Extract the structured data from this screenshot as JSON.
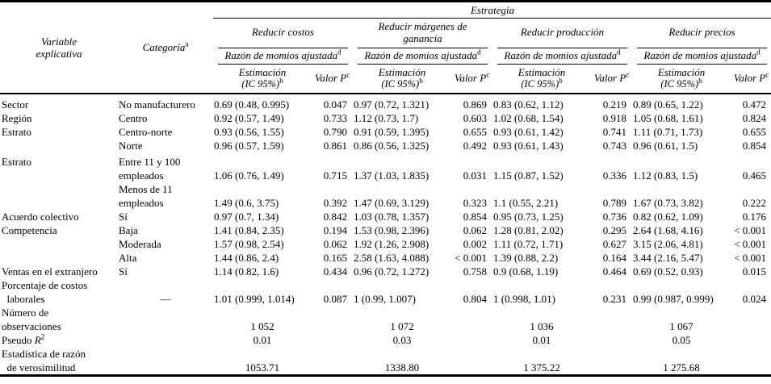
{
  "header": {
    "estrategia": "Estrategia",
    "variable": "Variable\nexplicativa",
    "categoria": {
      "text": "Categoría",
      "sup": "a"
    },
    "groups": [
      {
        "label": "Reducir costos"
      },
      {
        "label": "Reducir márgenes de\nganancia"
      },
      {
        "label": "Reducir producción"
      },
      {
        "label": "Reducir precios"
      }
    ],
    "momios": {
      "text": "Razón de momios ajustada",
      "sup": "d"
    },
    "estimacion": {
      "line1": "Estimación",
      "line2": "(IC 95%)",
      "sup": "b"
    },
    "valor_p": {
      "text": "Valor P",
      "sup": "c"
    }
  },
  "body": {
    "rows": [
      {
        "variable": "Sector",
        "categoria": "No manufacturero",
        "values": [
          "0.69 (0.48, 0.995)",
          "0.047",
          "0.97 (0.72, 1.321)",
          "0.869",
          "0.83 (0.62, 1.12)",
          "0.219",
          "0.89 (0.65, 1.22)",
          "0.472"
        ]
      },
      {
        "variable": "Región",
        "categoria": "Centro",
        "values": [
          "0.92 (0.57, 1.49)",
          "0.733",
          "1.12 (0.73, 1.7)",
          "0.603",
          "1.02 (0.68, 1.54)",
          "0.918",
          "1.05 (0.68, 1.61)",
          "0.824"
        ]
      },
      {
        "variable": "Estrato",
        "categoria": "Centro-norte",
        "values": [
          "0.93 (0.56, 1.55)",
          "0.790",
          "0.91 (0.59, 1.395)",
          "0.655",
          "0.93 (0.61, 1.42)",
          "0.741",
          "1.11 (0.71, 1.73)",
          "0.655"
        ]
      },
      {
        "variable": "",
        "categoria": "Norte",
        "values": [
          "0.96 (0.57, 1.59)",
          "0.861",
          "0.86 (0.56, 1.325)",
          "0.492",
          "0.93 (0.61, 1.43)",
          "0.743",
          "0.96 (0.61, 1.5)",
          "0.854"
        ]
      },
      {
        "variable": "Estrato",
        "categoria": "Entre 11 y 100\nempleados",
        "values": [
          "1.06 (0.76, 1.49)",
          "0.715",
          "1.37 (1.03, 1.835)",
          "0.031",
          "1.15 (0.87, 1.52)",
          "0.336",
          "1.12 (0.83, 1.5)",
          "0.465"
        ]
      },
      {
        "variable": "",
        "categoria": "Menos de 11\nempleados",
        "values": [
          "1.49 (0.6, 3.75)",
          "0.392",
          "1.47 (0.69, 3.129)",
          "0.323",
          "1.1 (0.55, 2.21)",
          "0.789",
          "1.67 (0.73, 3.82)",
          "0.222"
        ]
      },
      {
        "variable": "Acuerdo colectivo",
        "categoria": "Sí",
        "values": [
          "0.97 (0.7, 1.34)",
          "0.842",
          "1.03 (0.78, 1.357)",
          "0.854",
          "0.95 (0.73, 1.25)",
          "0.736",
          "0.82 (0.62, 1.09)",
          "0.176"
        ]
      },
      {
        "variable": "Competencia",
        "categoria": "Baja",
        "values": [
          "1.41 (0.84, 2.35)",
          "0.194",
          "1.53 (0.98, 2.396)",
          "0.062",
          "1.28 (0.81, 2.02)",
          "0.295",
          "2.64 (1.68, 4.16)",
          "< 0.001"
        ]
      },
      {
        "variable": "",
        "categoria": "Moderada",
        "values": [
          "1.57 (0.98, 2.54)",
          "0.062",
          "1.92 (1.26, 2.908)",
          "0.002",
          "1.11 (0.72, 1.71)",
          "0.627",
          "3.15 (2.06, 4.81)",
          "< 0.001"
        ]
      },
      {
        "variable": "",
        "categoria": "Alta",
        "values": [
          "1.44 (0.86, 2.4)",
          "0.165",
          "2.58 (1.63, 4.088)",
          "< 0.001",
          "1.39 (0.88, 2.2)",
          "0.164",
          "3.44 (2.16, 5.47)",
          "< 0.001"
        ]
      },
      {
        "variable": "Ventas en el extranjero",
        "categoria": "Sí",
        "values": [
          "1.14 (0.82, 1.6)",
          "0.434",
          "0.96 (0.72, 1.272)",
          "0.758",
          "0.9 (0.68, 1.19)",
          "0.464",
          "0.69 (0.52, 0.93)",
          "0.015"
        ]
      },
      {
        "variable": "Porcentaje de costos\n  laborales",
        "categoria": "—",
        "values": [
          "1.01 (0.999, 1.014)",
          "0.087",
          "1 (0.99, 1.007)",
          "0.804",
          "1 (0.998, 1.01)",
          "0.231",
          "0.99 (0.987, 0.999)",
          "0.024"
        ]
      }
    ],
    "summary": [
      {
        "label": "Número de\nobservaciones",
        "values": [
          "1 052",
          "1 072",
          "1 036",
          "1 067"
        ]
      },
      {
        "label_pre": "Pseudo ",
        "label_italic": "R",
        "label_sup": "2",
        "values": [
          "0.01",
          "0.03",
          "0.01",
          "0.05"
        ]
      },
      {
        "label": "Estadística de razón\n  de verosimilitud",
        "values": [
          "1053.71",
          "1338.80",
          "1 375.22",
          "1 275.68"
        ]
      }
    ]
  }
}
